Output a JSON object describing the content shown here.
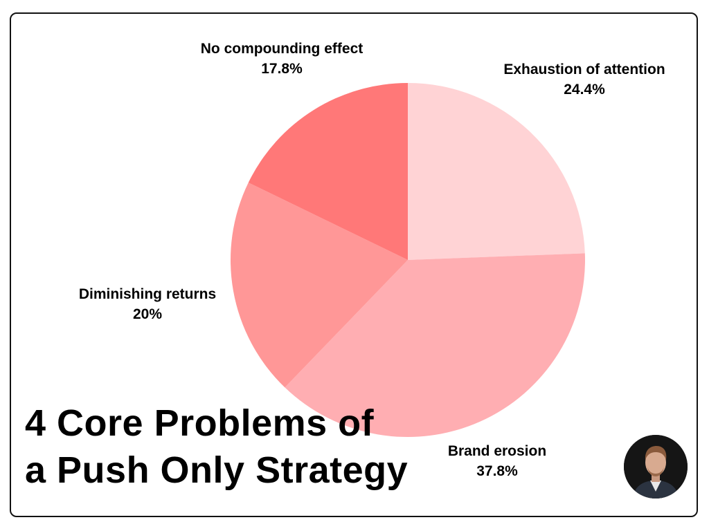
{
  "chart_data": {
    "type": "pie",
    "title_line1": "4 Core Problems of",
    "title_line2": "a Push Only Strategy",
    "slices": [
      {
        "label": "Exhaustion of attention",
        "value": 24.4,
        "value_label": "24.4%",
        "color": "#ffd3d5"
      },
      {
        "label": "Brand erosion",
        "value": 37.8,
        "value_label": "37.8%",
        "color": "#ffaeb2"
      },
      {
        "label": "Diminishing returns",
        "value": 20,
        "value_label": "20%",
        "color": "#ff9797"
      },
      {
        "label": "No compounding effect",
        "value": 17.8,
        "value_label": "17.8%",
        "color": "#ff7878"
      }
    ],
    "start": "12 o'clock",
    "direction": "clockwise",
    "legend": "none"
  },
  "avatar_icon": "author-portrait"
}
